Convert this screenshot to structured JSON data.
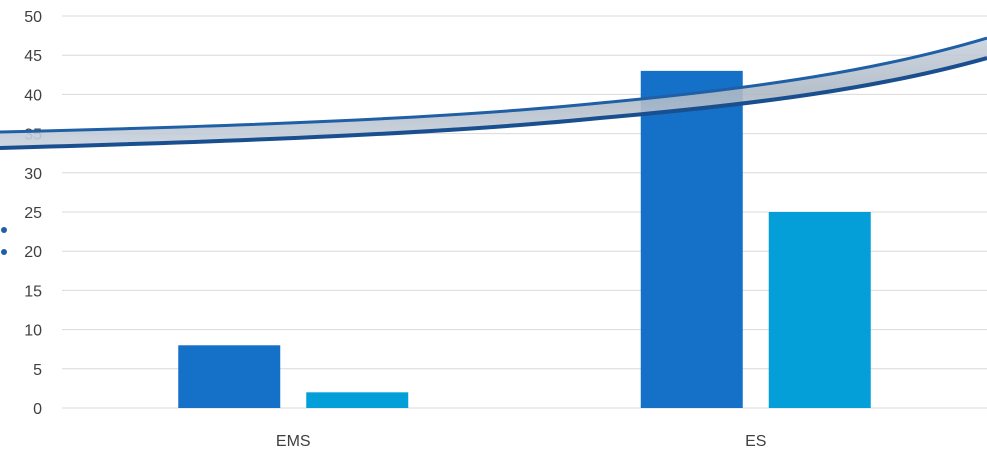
{
  "chart_data": {
    "type": "bar",
    "categories": [
      "EMS",
      "ES"
    ],
    "series": [
      {
        "values": [
          8,
          43
        ],
        "color": "#1570c8"
      },
      {
        "values": [
          2,
          25
        ],
        "color": "#049fd9"
      }
    ],
    "ylim": [
      0,
      50
    ],
    "yticks": [
      0,
      5,
      10,
      15,
      20,
      25,
      30,
      35,
      40,
      45,
      50
    ],
    "grid": true,
    "legend": "none",
    "colors": {
      "gridline": "#d9d9d9",
      "axis_text": "#404040",
      "decorative_band": "#1f5fa5"
    }
  }
}
